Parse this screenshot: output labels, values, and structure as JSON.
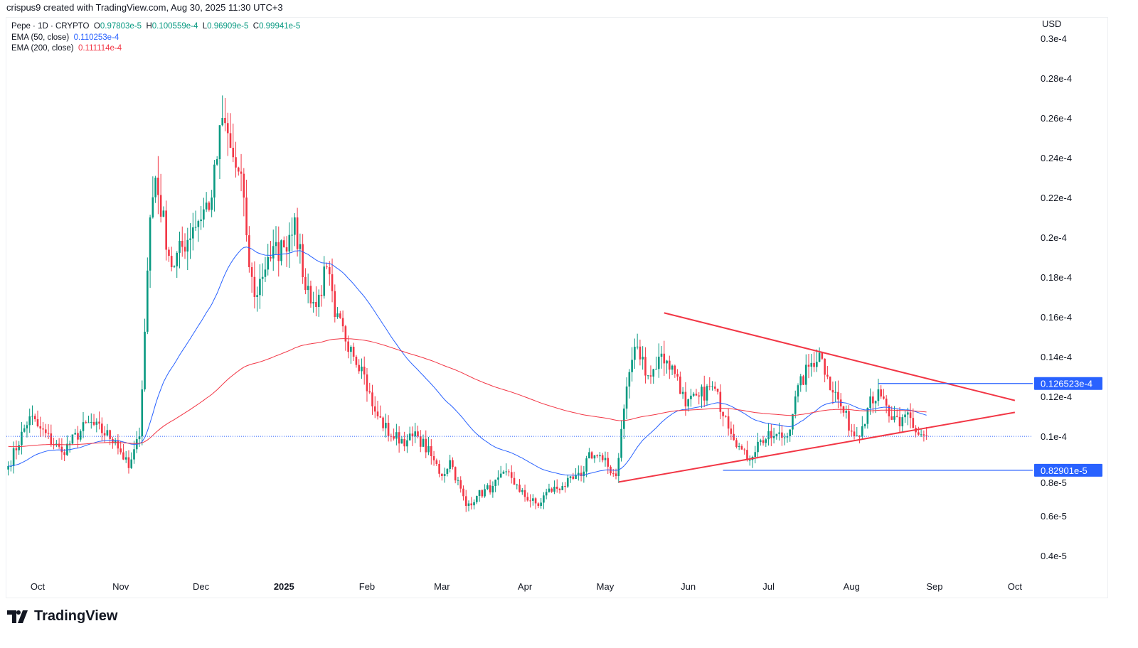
{
  "credit": "crispus9 created with TradingView.com, Aug 30, 2025 11:30 UTC+3",
  "legend": {
    "symbol": "Pepe · 1D · CRYPTO",
    "o_label": "O",
    "o": "0.97803e-5",
    "h_label": "H",
    "h": "0.100559e-4",
    "l_label": "L",
    "l": "0.96909e-5",
    "c_label": "C",
    "c": "0.99941e-5",
    "ema50_label": "EMA (50, close)",
    "ema50": "0.110253e-4",
    "ema200_label": "EMA (200, close)",
    "ema200": "0.111114e-4"
  },
  "footer": {
    "brand": "TradingView"
  },
  "colors": {
    "up": "#089981",
    "down": "#f23645",
    "ema50": "#2962ff",
    "ema200": "#f23645",
    "trendline": "#f23645",
    "level": "#2962ff"
  },
  "chart_data": {
    "type": "candlestick",
    "currency": "USD",
    "y_ticks": [
      "0.3e-4",
      "0.28e-4",
      "0.26e-4",
      "0.24e-4",
      "0.22e-4",
      "0.2e-4",
      "0.18e-4",
      "0.16e-4",
      "0.14e-4",
      "0.12e-4",
      "0.1e-4",
      "0.8e-5",
      "0.6e-5",
      "0.4e-5"
    ],
    "ylim": [
      3.5e-06,
      3.05e-05
    ],
    "x_ticks": [
      {
        "label": "Oct",
        "date": "2024-10-01"
      },
      {
        "label": "Nov",
        "date": "2024-11-01"
      },
      {
        "label": "Dec",
        "date": "2024-12-01"
      },
      {
        "label": "2025",
        "date": "2025-01-01",
        "bold": true
      },
      {
        "label": "Feb",
        "date": "2025-02-01"
      },
      {
        "label": "Mar",
        "date": "2025-03-01"
      },
      {
        "label": "Apr",
        "date": "2025-04-01"
      },
      {
        "label": "May",
        "date": "2025-05-01"
      },
      {
        "label": "Jun",
        "date": "2025-06-01"
      },
      {
        "label": "Jul",
        "date": "2025-07-01"
      },
      {
        "label": "Aug",
        "date": "2025-08-01"
      },
      {
        "label": "Sep",
        "date": "2025-09-01"
      },
      {
        "label": "Oct",
        "date": "2025-10-01"
      }
    ],
    "approx_closes": [
      [
        "2024-09-20",
        8.5e-06
      ],
      [
        "2024-09-28",
        1.1e-05
      ],
      [
        "2024-10-01",
        1.05e-05
      ],
      [
        "2024-10-10",
        9.2e-06
      ],
      [
        "2024-10-20",
        1.07e-05
      ],
      [
        "2024-10-30",
        9.8e-06
      ],
      [
        "2024-11-04",
        8.4e-06
      ],
      [
        "2024-11-08",
        1e-05
      ],
      [
        "2024-11-12",
        2.1e-05
      ],
      [
        "2024-11-14",
        2.3e-05
      ],
      [
        "2024-11-20",
        1.85e-05
      ],
      [
        "2024-11-28",
        2.05e-05
      ],
      [
        "2024-12-05",
        2.2e-05
      ],
      [
        "2024-12-09",
        2.6e-05
      ],
      [
        "2024-12-12",
        2.45e-05
      ],
      [
        "2024-12-17",
        2.2e-05
      ],
      [
        "2024-12-19",
        1.85e-05
      ],
      [
        "2024-12-21",
        1.7e-05
      ],
      [
        "2024-12-26",
        1.9e-05
      ],
      [
        "2025-01-01",
        1.95e-05
      ],
      [
        "2025-01-05",
        2.1e-05
      ],
      [
        "2025-01-08",
        1.8e-05
      ],
      [
        "2025-01-13",
        1.65e-05
      ],
      [
        "2025-01-17",
        1.85e-05
      ],
      [
        "2025-01-20",
        1.6e-05
      ],
      [
        "2025-01-26",
        1.45e-05
      ],
      [
        "2025-01-30",
        1.35e-05
      ],
      [
        "2025-02-03",
        1.15e-05
      ],
      [
        "2025-02-05",
        1.1e-05
      ],
      [
        "2025-02-10",
        1e-05
      ],
      [
        "2025-02-16",
        9.8e-06
      ],
      [
        "2025-02-20",
        1e-05
      ],
      [
        "2025-02-25",
        9e-06
      ],
      [
        "2025-03-01",
        8e-06
      ],
      [
        "2025-03-04",
        8.8e-06
      ],
      [
        "2025-03-10",
        6.5e-06
      ],
      [
        "2025-03-14",
        7e-06
      ],
      [
        "2025-03-20",
        7.5e-06
      ],
      [
        "2025-03-26",
        8.2e-06
      ],
      [
        "2025-03-30",
        7.2e-06
      ],
      [
        "2025-04-06",
        6.5e-06
      ],
      [
        "2025-04-09",
        7.2e-06
      ],
      [
        "2025-04-15",
        7.5e-06
      ],
      [
        "2025-04-22",
        8e-06
      ],
      [
        "2025-04-25",
        9.2e-06
      ],
      [
        "2025-04-30",
        8.8e-06
      ],
      [
        "2025-05-05",
        8e-06
      ],
      [
        "2025-05-09",
        1.25e-05
      ],
      [
        "2025-05-12",
        1.45e-05
      ],
      [
        "2025-05-18",
        1.3e-05
      ],
      [
        "2025-05-21",
        1.4e-05
      ],
      [
        "2025-05-24",
        1.38e-05
      ],
      [
        "2025-05-28",
        1.3e-05
      ],
      [
        "2025-05-31",
        1.15e-05
      ],
      [
        "2025-06-05",
        1.2e-05
      ],
      [
        "2025-06-10",
        1.25e-05
      ],
      [
        "2025-06-15",
        1.1e-05
      ],
      [
        "2025-06-20",
        9.5e-06
      ],
      [
        "2025-06-23",
        8.8e-06
      ],
      [
        "2025-06-28",
        9.8e-06
      ],
      [
        "2025-07-03",
        1e-05
      ],
      [
        "2025-07-08",
        1e-05
      ],
      [
        "2025-07-11",
        1.2e-05
      ],
      [
        "2025-07-16",
        1.35e-05
      ],
      [
        "2025-07-20",
        1.42e-05
      ],
      [
        "2025-07-23",
        1.3e-05
      ],
      [
        "2025-07-28",
        1.15e-05
      ],
      [
        "2025-08-02",
        1e-05
      ],
      [
        "2025-08-05",
        1.05e-05
      ],
      [
        "2025-08-08",
        1.2e-05
      ],
      [
        "2025-08-12",
        1.2e-05
      ],
      [
        "2025-08-15",
        1.1e-05
      ],
      [
        "2025-08-19",
        1.05e-05
      ],
      [
        "2025-08-22",
        1.12e-05
      ],
      [
        "2025-08-25",
        1.02e-05
      ],
      [
        "2025-08-29",
        9.9941e-06
      ]
    ],
    "indicators": [
      {
        "name": "EMA (50, close)",
        "period": 50
      },
      {
        "name": "EMA (200, close)",
        "period": 200
      }
    ],
    "trendlines": [
      {
        "from": [
          "2025-05-23",
          1.62e-05
        ],
        "to": [
          "2025-10-01",
          1.18e-05
        ]
      },
      {
        "from": [
          "2025-05-06",
          7.7e-06
        ],
        "to": [
          "2025-10-01",
          1.12e-05
        ]
      }
    ],
    "levels": [
      {
        "label": "0.126523e-4",
        "value": 1.26523e-05,
        "from": "2025-08-11"
      },
      {
        "label": "0.82901e-5",
        "value": 8.2901e-06,
        "from": "2025-06-14"
      }
    ],
    "last_price": 9.9941e-06
  }
}
